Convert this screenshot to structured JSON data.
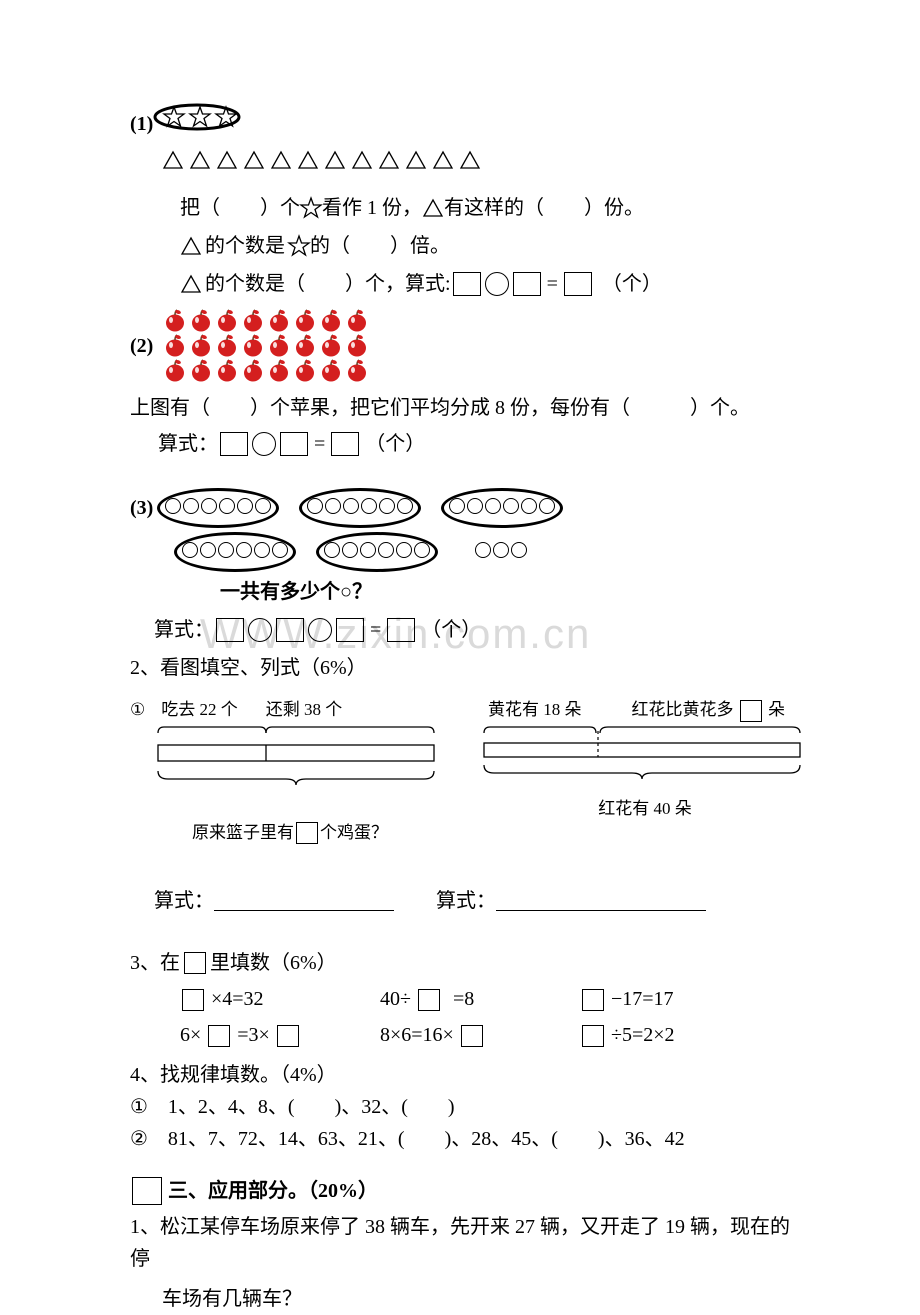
{
  "q1": {
    "label": "(1)",
    "star_count": 3,
    "tri_count": 12,
    "line1_parts": [
      "把（　　）个",
      "看作 1 份，",
      "有这样的（　　）份。"
    ],
    "line2_parts": [
      "的个数是",
      "的（　　）倍。"
    ],
    "line3": "的个数是（　　）个，算式:",
    "equals": "=",
    "unit": "（个）"
  },
  "q2": {
    "label": "(2)",
    "rows": 3,
    "cols": 8,
    "text": "上图有（　　）个苹果，把它们平均分成 8 份，每份有（　　　）个。",
    "formula_label": "算式：",
    "equals": "=",
    "unit": "（个）"
  },
  "q3": {
    "label": "(3)",
    "question": "一共有多少个○？",
    "formula_label": "算式：",
    "equals": "=",
    "unit": "（个）",
    "group_counts": [
      6,
      6,
      6,
      6,
      6
    ],
    "extra": 3
  },
  "sec2": {
    "title": "2、看图填空、列式（6%）",
    "p1": {
      "num": "①",
      "eaten": "吃去 22 个",
      "left": "还剩 38 个",
      "question": "原来篮子里有",
      "question2": "个鸡蛋？"
    },
    "p2": {
      "yellow": "黄花有 18 朵",
      "red_more": "红花比黄花多",
      "duo": "朵",
      "red": "红花有 40 朵"
    },
    "formula": "算式：",
    "formula2": "算式："
  },
  "sec3": {
    "title": "3、在",
    "title2": "里填数（6%）",
    "r1c1": "×4=32",
    "r1c2_a": "40÷",
    "r1c2_b": "=8",
    "r1c3": "−17=17",
    "r2c1_a": "6×",
    "r2c1_b": "=3×",
    "r2c2_a": "8×6=16×",
    "r2c3": "÷5=2×2"
  },
  "sec4": {
    "title": "4、找规律填数。（4%）",
    "seq1": "①　1、2、4、8、(　　)、32、(　　)",
    "seq2": "②　81、7、72、14、63、21、(　　)、28、45、(　　)、36、42"
  },
  "sec_app": {
    "title": "三、应用部分。（20%）",
    "q1": "1、松江某停车场原来停了 38 辆车，先开来 27 辆，又开走了 19 辆，现在的停",
    "q1b": "车场有几辆车？"
  },
  "watermark": "WWW.zixin.com.cn",
  "colors": {
    "apple_fill": "#d41f1f",
    "apple_shine": "#ffffff",
    "apple_stem": "#5a3a1a",
    "apple_leaf": "#d41f1f"
  }
}
